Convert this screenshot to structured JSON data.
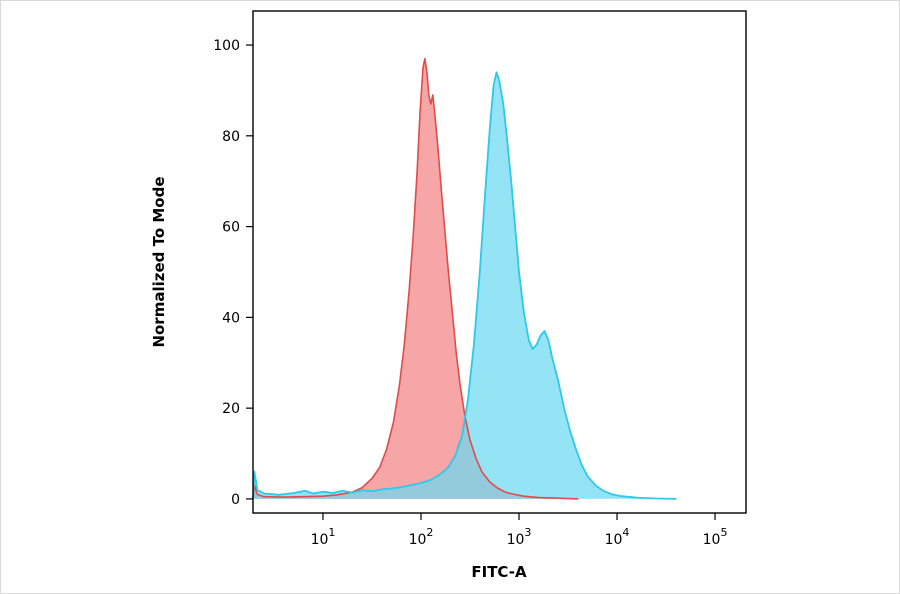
{
  "chart_data": {
    "type": "area",
    "title": "",
    "xlabel": "FITC-A",
    "ylabel": "Normalized To Mode",
    "x_scale": "log10",
    "grid": false,
    "legend": "none",
    "axis_color": "#000000",
    "x_range_log": [
      0.286,
      5.316
    ],
    "y_range": [
      -3.1,
      107.5
    ],
    "y_ticks": [
      0,
      20,
      40,
      60,
      80,
      100
    ],
    "x_ticks": [
      {
        "log": 1,
        "base": "10",
        "exp": "1"
      },
      {
        "log": 2,
        "base": "10",
        "exp": "2"
      },
      {
        "log": 3,
        "base": "10",
        "exp": "3"
      },
      {
        "log": 4,
        "base": "10",
        "exp": "4"
      },
      {
        "log": 5,
        "base": "10",
        "exp": "5"
      }
    ],
    "series": [
      {
        "name": "red-population",
        "stroke": "#e04b4b",
        "stroke_width": 1.6,
        "fill": "rgba(242,128,128,0.70)",
        "peak_x_log": 2.04,
        "peak_y": 97,
        "points": [
          [
            0.286,
            0
          ],
          [
            0.3,
            3
          ],
          [
            0.33,
            1
          ],
          [
            0.4,
            0.5
          ],
          [
            0.6,
            0.4
          ],
          [
            0.8,
            0.5
          ],
          [
            1.0,
            0.6
          ],
          [
            1.15,
            0.9
          ],
          [
            1.3,
            1.5
          ],
          [
            1.4,
            2.5
          ],
          [
            1.5,
            4.5
          ],
          [
            1.58,
            7
          ],
          [
            1.65,
            11
          ],
          [
            1.72,
            17
          ],
          [
            1.78,
            25
          ],
          [
            1.83,
            34
          ],
          [
            1.88,
            46
          ],
          [
            1.92,
            58
          ],
          [
            1.96,
            72
          ],
          [
            1.99,
            85
          ],
          [
            2.02,
            95
          ],
          [
            2.04,
            97
          ],
          [
            2.06,
            94
          ],
          [
            2.08,
            89
          ],
          [
            2.1,
            87
          ],
          [
            2.12,
            89
          ],
          [
            2.14,
            85
          ],
          [
            2.17,
            78
          ],
          [
            2.2,
            70
          ],
          [
            2.24,
            60
          ],
          [
            2.28,
            50
          ],
          [
            2.32,
            41
          ],
          [
            2.36,
            32
          ],
          [
            2.4,
            25
          ],
          [
            2.45,
            18
          ],
          [
            2.5,
            13
          ],
          [
            2.56,
            9
          ],
          [
            2.62,
            6
          ],
          [
            2.7,
            3.8
          ],
          [
            2.78,
            2.4
          ],
          [
            2.86,
            1.5
          ],
          [
            2.95,
            1
          ],
          [
            3.05,
            0.6
          ],
          [
            3.2,
            0.3
          ],
          [
            3.4,
            0.15
          ],
          [
            3.6,
            0
          ]
        ]
      },
      {
        "name": "cyan-population",
        "stroke": "#2ec8ea",
        "stroke_width": 1.8,
        "fill": "rgba(108,217,242,0.72)",
        "peak_x_log": 2.77,
        "peak_y": 94,
        "points": [
          [
            0.286,
            0
          ],
          [
            0.3,
            6
          ],
          [
            0.33,
            2
          ],
          [
            0.4,
            1.2
          ],
          [
            0.55,
            0.9
          ],
          [
            0.7,
            1.3
          ],
          [
            0.82,
            1.8
          ],
          [
            0.9,
            1.2
          ],
          [
            1.0,
            1.6
          ],
          [
            1.1,
            1.3
          ],
          [
            1.2,
            1.8
          ],
          [
            1.3,
            1.4
          ],
          [
            1.4,
            1.9
          ],
          [
            1.5,
            1.7
          ],
          [
            1.6,
            2.1
          ],
          [
            1.7,
            2.3
          ],
          [
            1.8,
            2.6
          ],
          [
            1.9,
            3.0
          ],
          [
            2.0,
            3.5
          ],
          [
            2.1,
            4.2
          ],
          [
            2.2,
            5.5
          ],
          [
            2.28,
            7
          ],
          [
            2.35,
            9.5
          ],
          [
            2.42,
            14
          ],
          [
            2.48,
            22
          ],
          [
            2.54,
            34
          ],
          [
            2.6,
            50
          ],
          [
            2.65,
            66
          ],
          [
            2.7,
            81
          ],
          [
            2.74,
            91
          ],
          [
            2.77,
            94
          ],
          [
            2.8,
            92
          ],
          [
            2.84,
            87
          ],
          [
            2.88,
            79
          ],
          [
            2.92,
            70
          ],
          [
            2.96,
            60
          ],
          [
            3.0,
            50
          ],
          [
            3.05,
            41
          ],
          [
            3.1,
            35
          ],
          [
            3.14,
            33
          ],
          [
            3.18,
            34
          ],
          [
            3.22,
            36
          ],
          [
            3.26,
            37
          ],
          [
            3.3,
            35
          ],
          [
            3.34,
            31
          ],
          [
            3.4,
            26
          ],
          [
            3.46,
            20
          ],
          [
            3.52,
            15
          ],
          [
            3.58,
            11
          ],
          [
            3.64,
            7.5
          ],
          [
            3.7,
            5
          ],
          [
            3.78,
            3
          ],
          [
            3.86,
            1.8
          ],
          [
            3.95,
            1
          ],
          [
            4.05,
            0.6
          ],
          [
            4.2,
            0.3
          ],
          [
            4.4,
            0.1
          ],
          [
            4.6,
            0
          ]
        ]
      }
    ]
  }
}
